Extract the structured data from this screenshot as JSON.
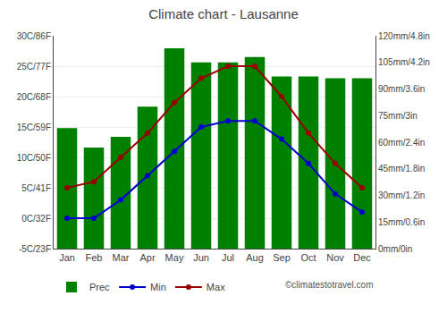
{
  "chart_data": {
    "type": "bar",
    "title": "Climate chart - Lausanne",
    "categories": [
      "Jan",
      "Feb",
      "Mar",
      "Apr",
      "May",
      "Jun",
      "Jul",
      "Aug",
      "Sep",
      "Oct",
      "Nov",
      "Dec"
    ],
    "series": [
      {
        "name": "Prec",
        "type": "bar",
        "color": "#008000",
        "axis": "y2",
        "values": [
          68,
          57,
          63,
          80,
          113,
          105,
          105,
          108,
          97,
          97,
          96,
          96
        ]
      },
      {
        "name": "Min",
        "type": "line",
        "color": "#0000cc",
        "marker": "circle",
        "values": [
          0,
          0,
          3,
          7,
          11,
          15,
          16,
          16,
          13,
          9,
          4,
          1
        ]
      },
      {
        "name": "Max",
        "type": "line",
        "color": "#990000",
        "marker": "circle",
        "values": [
          5,
          6,
          10,
          14,
          19,
          23,
          25,
          25,
          20,
          14,
          9,
          5
        ]
      }
    ],
    "ylim": [
      -5,
      30
    ],
    "yticks": [
      {
        "value": -5,
        "label": "-5C/23F"
      },
      {
        "value": 0,
        "label": "0C/32F"
      },
      {
        "value": 5,
        "label": "5C/41F"
      },
      {
        "value": 10,
        "label": "10C/50F"
      },
      {
        "value": 15,
        "label": "15C/59F"
      },
      {
        "value": 20,
        "label": "20C/68F"
      },
      {
        "value": 25,
        "label": "25C/77F"
      },
      {
        "value": 30,
        "label": "30C/86F"
      }
    ],
    "y2lim": [
      0,
      120
    ],
    "y2ticks": [
      {
        "value": 0,
        "label": "0mm/0in"
      },
      {
        "value": 15,
        "label": "15mm/0.6in"
      },
      {
        "value": 30,
        "label": "30mm/1.2in"
      },
      {
        "value": 45,
        "label": "45mm/1.8in"
      },
      {
        "value": 60,
        "label": "60mm/2.4in"
      },
      {
        "value": 75,
        "label": "75mm/3in"
      },
      {
        "value": 90,
        "label": "90mm/3.6in"
      },
      {
        "value": 105,
        "label": "105mm/4.2in"
      },
      {
        "value": 120,
        "label": "120mm/4.8in"
      }
    ],
    "grid": true,
    "legend": "bottom",
    "annotations": [
      "©climatestotravel.com"
    ]
  }
}
